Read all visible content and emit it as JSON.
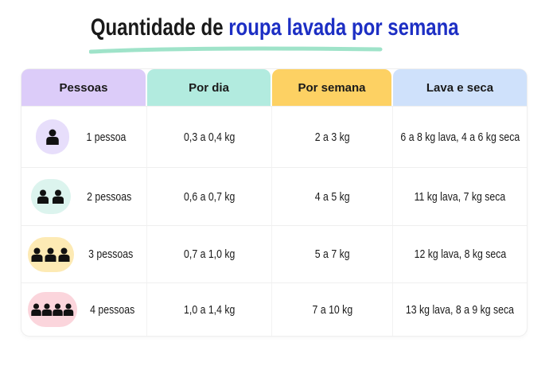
{
  "header": {
    "title_start": "Quantidade de",
    "title_highlight": "roupa lavada por semana"
  },
  "table": {
    "headers": [
      "Pessoas",
      "Por dia",
      "Por semana",
      "Lava e seca"
    ],
    "rows": [
      [
        "1 pessoa",
        "0,3 a 0,4 kg",
        "2 a 3 kg",
        "6 a 8 kg lava, 4 a 6 kg seca"
      ],
      [
        "2 pessoas",
        "0,6 a 0,7 kg",
        "4 a 5 kg",
        "11 kg lava, 7 kg seca"
      ],
      [
        "3 pessoas",
        "0,7 a 1,0 kg",
        "5 a 7 kg",
        "12 kg lava, 8 kg seca"
      ],
      [
        "4 pessoas",
        "1,0 a 1,4 kg",
        "7 a 10 kg",
        "13 kg lava, 8 a 9 kg seca"
      ]
    ]
  }
}
